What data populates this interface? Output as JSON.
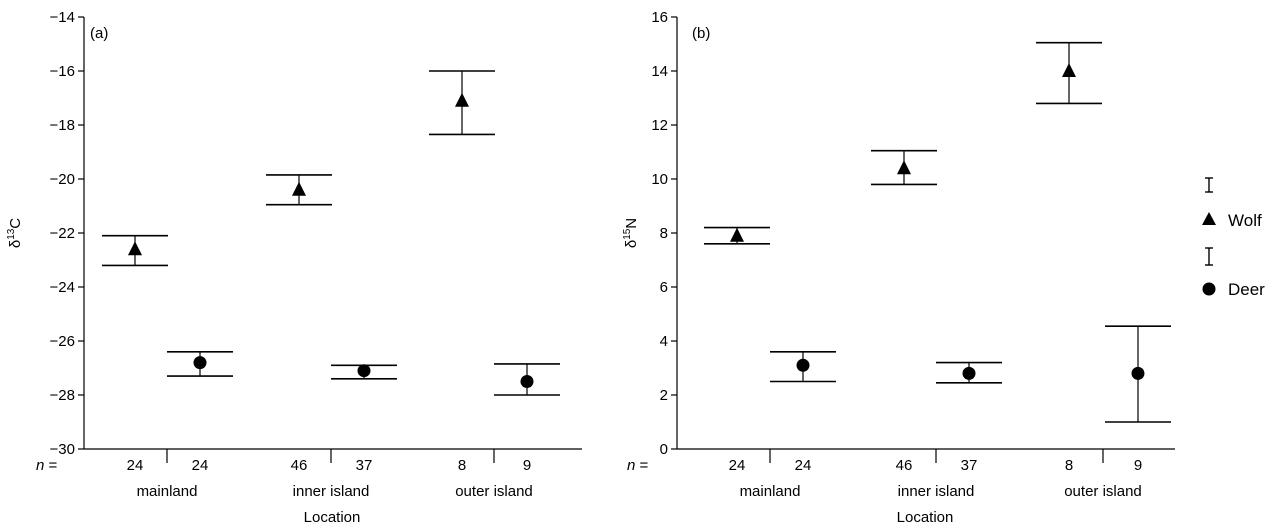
{
  "chart_data": [
    {
      "type": "scatter",
      "panel_label": "(a)",
      "ylabel_main": "δ",
      "ylabel_sup": "13",
      "ylabel_tail": "C",
      "xlabel": "Location",
      "n_prefix": "n",
      "n_eq": " =",
      "ylim": [
        -30,
        -14
      ],
      "yticks": [
        -30,
        -28,
        -26,
        -24,
        -22,
        -20,
        -18,
        -16,
        -14
      ],
      "yticklabels": [
        "−30",
        "−28",
        "−26",
        "−24",
        "−22",
        "−20",
        "−18",
        "−16",
        "−14"
      ],
      "groups": [
        "mainland",
        "inner island",
        "outer island"
      ],
      "points": [
        {
          "series": "Wolf",
          "group": "mainland",
          "n": "24",
          "y": -22.6,
          "low": -23.2,
          "high": -22.1
        },
        {
          "series": "Deer",
          "group": "mainland",
          "n": "24",
          "y": -26.8,
          "low": -27.3,
          "high": -26.4
        },
        {
          "series": "Wolf",
          "group": "inner island",
          "n": "46",
          "y": -20.4,
          "low": -20.95,
          "high": -19.85
        },
        {
          "series": "Deer",
          "group": "inner island",
          "n": "37",
          "y": -27.1,
          "low": -27.4,
          "high": -26.9
        },
        {
          "series": "Wolf",
          "group": "outer island",
          "n": "8",
          "y": -17.1,
          "low": -18.35,
          "high": -16.0
        },
        {
          "series": "Deer",
          "group": "outer island",
          "n": "9",
          "y": -27.5,
          "low": -28.0,
          "high": -26.85
        }
      ]
    },
    {
      "type": "scatter",
      "panel_label": "(b)",
      "ylabel_main": "δ",
      "ylabel_sup": "15",
      "ylabel_tail": "N",
      "xlabel": "Location",
      "n_prefix": "n",
      "n_eq": " =",
      "ylim": [
        0,
        16
      ],
      "yticks": [
        0,
        2,
        4,
        6,
        8,
        10,
        12,
        14,
        16
      ],
      "yticklabels": [
        "0",
        "2",
        "4",
        "6",
        "8",
        "10",
        "12",
        "14",
        "16"
      ],
      "groups": [
        "mainland",
        "inner island",
        "outer island"
      ],
      "points": [
        {
          "series": "Wolf",
          "group": "mainland",
          "n": "24",
          "y": 7.9,
          "low": 7.6,
          "high": 8.2
        },
        {
          "series": "Deer",
          "group": "mainland",
          "n": "24",
          "y": 3.1,
          "low": 2.5,
          "high": 3.6
        },
        {
          "series": "Wolf",
          "group": "inner island",
          "n": "46",
          "y": 10.4,
          "low": 9.8,
          "high": 11.05
        },
        {
          "series": "Deer",
          "group": "inner island",
          "n": "37",
          "y": 2.8,
          "low": 2.45,
          "high": 3.2
        },
        {
          "series": "Wolf",
          "group": "outer island",
          "n": "8",
          "y": 14.0,
          "low": 12.8,
          "high": 15.05
        },
        {
          "series": "Deer",
          "group": "outer island",
          "n": "9",
          "y": 2.8,
          "low": 1.0,
          "high": 4.55
        }
      ]
    }
  ],
  "legend": {
    "placement": "right",
    "items": [
      {
        "label": "Wolf",
        "marker": "triangle"
      },
      {
        "label": "Deer",
        "marker": "circle"
      }
    ]
  },
  "colors": {
    "ink": "#000000",
    "background": "#ffffff"
  }
}
